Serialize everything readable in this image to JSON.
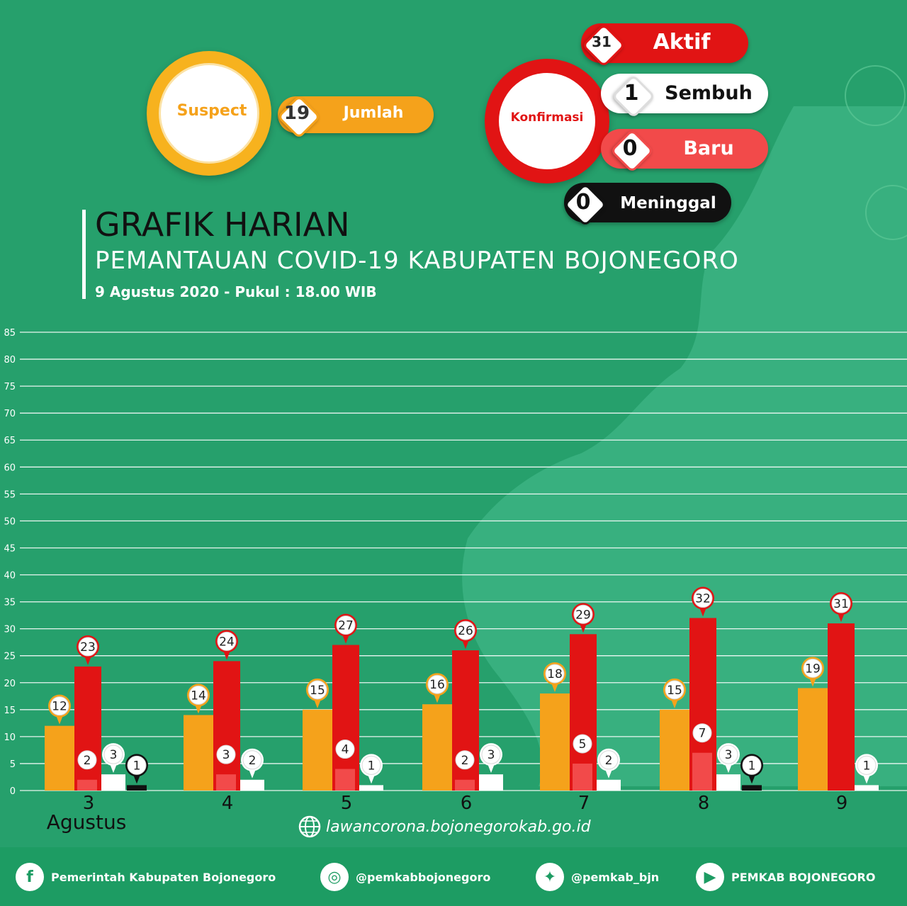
{
  "suspect": {
    "label": "Suspect",
    "count": "19",
    "count_label": "Jumlah"
  },
  "konfirmasi": {
    "label": "Konfirmasi",
    "aktif": {
      "value": "31",
      "label": "Aktif"
    },
    "sembuh": {
      "value": "1",
      "label": "Sembuh"
    },
    "baru": {
      "value": "0",
      "label": "Baru"
    },
    "meninggal": {
      "value": "0",
      "label": "Meninggal"
    }
  },
  "heading": {
    "title": "GRAFIK HARIAN",
    "subtitle": "PEMANTAUAN COVID-19 KABUPATEN BOJONEGORO",
    "date": "9 Agustus 2020 - Pukul : 18.00 WIB"
  },
  "colors": {
    "background": "#26a06c",
    "suspect": "#f5a21b",
    "aktif": "#e11414",
    "baru": "#f24a4a",
    "sembuh": "#ffffff",
    "meninggal": "#111111"
  },
  "chart_data": {
    "type": "bar",
    "categories": [
      "3",
      "4",
      "5",
      "6",
      "7",
      "8",
      "9"
    ],
    "month_label": "Agustus",
    "ylim": [
      0,
      85
    ],
    "yticks": [
      0,
      5,
      10,
      15,
      20,
      25,
      30,
      35,
      40,
      45,
      50,
      55,
      60,
      65,
      70,
      75,
      80,
      85
    ],
    "grid": true,
    "series": [
      {
        "key": "suspect",
        "values": [
          12,
          14,
          15,
          16,
          18,
          15,
          19
        ]
      },
      {
        "key": "aktif",
        "values": [
          23,
          24,
          27,
          26,
          29,
          32,
          31
        ]
      },
      {
        "key": "baru",
        "values": [
          2,
          3,
          4,
          2,
          5,
          7,
          0
        ]
      },
      {
        "key": "sembuh",
        "values": [
          3,
          2,
          1,
          3,
          2,
          3,
          1
        ]
      },
      {
        "key": "meninggal",
        "values": [
          1,
          0,
          0,
          0,
          0,
          1,
          0
        ]
      }
    ]
  },
  "website": {
    "icon": "globe-icon",
    "text": "lawancorona.bojonegorokab.go.id"
  },
  "footer": [
    {
      "icon": "facebook-icon",
      "glyph": "f",
      "text": "Pemerintah Kabupaten Bojonegoro"
    },
    {
      "icon": "instagram-icon",
      "glyph": "◎",
      "text": "@pemkabbojonegoro"
    },
    {
      "icon": "twitter-icon",
      "glyph": "✦",
      "text": "@pemkab_bjn"
    },
    {
      "icon": "youtube-icon",
      "glyph": "▶",
      "text": "PEMKAB BOJONEGORO"
    }
  ]
}
